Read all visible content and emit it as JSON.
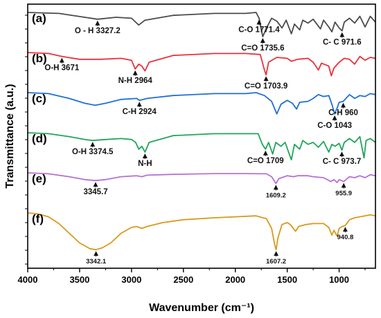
{
  "chart_data": {
    "type": "line",
    "xlabel": "Wavenumber (cm⁻¹)",
    "ylabel": "Transmittance (a.u.)",
    "xlim": [
      4000,
      650
    ],
    "x_reversed": true,
    "xticks": [
      4000,
      3500,
      3000,
      2500,
      2000,
      1500,
      1000
    ],
    "y_ticks_labeled": false,
    "series": [
      {
        "name": "(a)",
        "color": "#4a4a4a",
        "offset": 5,
        "points": [
          [
            4000,
            0
          ],
          [
            3700,
            -0.05
          ],
          [
            3450,
            -0.25
          ],
          [
            3327.2,
            -0.35
          ],
          [
            3150,
            -0.25
          ],
          [
            3000,
            -0.3
          ],
          [
            2960,
            -0.5
          ],
          [
            2930,
            -0.65
          ],
          [
            2870,
            -0.4
          ],
          [
            2600,
            -0.15
          ],
          [
            2200,
            -0.05
          ],
          [
            1900,
            -0.05
          ],
          [
            1800,
            0
          ],
          [
            1771.4,
            -0.3
          ],
          [
            1735.6,
            -1.25
          ],
          [
            1700,
            -0.8
          ],
          [
            1650,
            -0.3
          ],
          [
            1600,
            -0.45
          ],
          [
            1550,
            -0.8
          ],
          [
            1510,
            -0.4
          ],
          [
            1460,
            -1.1
          ],
          [
            1430,
            -0.6
          ],
          [
            1380,
            -0.9
          ],
          [
            1350,
            -0.4
          ],
          [
            1300,
            -0.55
          ],
          [
            1250,
            -0.35
          ],
          [
            1180,
            -0.85
          ],
          [
            1150,
            -0.4
          ],
          [
            1100,
            -0.75
          ],
          [
            1070,
            -1.0
          ],
          [
            1040,
            -0.5
          ],
          [
            1000,
            -0.8
          ],
          [
            971.6,
            -0.95
          ],
          [
            950,
            -0.5
          ],
          [
            900,
            -0.3
          ],
          [
            850,
            -0.55
          ],
          [
            800,
            -0.2
          ],
          [
            750,
            -0.75
          ],
          [
            700,
            -0.2
          ],
          [
            650,
            -0.5
          ]
        ]
      },
      {
        "name": "(b)",
        "color": "#e8313c",
        "offset": 4,
        "points": [
          [
            4000,
            0
          ],
          [
            3800,
            -0.05
          ],
          [
            3671,
            -0.2
          ],
          [
            3500,
            -0.35
          ],
          [
            3300,
            -0.35
          ],
          [
            3100,
            -0.3
          ],
          [
            3000,
            -0.4
          ],
          [
            2964,
            -0.85
          ],
          [
            2930,
            -0.6
          ],
          [
            2900,
            -0.7
          ],
          [
            2870,
            -0.95
          ],
          [
            2830,
            -0.5
          ],
          [
            2600,
            -0.15
          ],
          [
            2200,
            -0.05
          ],
          [
            1900,
            -0.05
          ],
          [
            1760,
            -0.1
          ],
          [
            1720,
            -0.9
          ],
          [
            1703.9,
            -1.15
          ],
          [
            1680,
            -0.5
          ],
          [
            1600,
            -0.25
          ],
          [
            1500,
            -0.3
          ],
          [
            1460,
            -0.45
          ],
          [
            1400,
            -0.35
          ],
          [
            1300,
            -0.3
          ],
          [
            1250,
            -0.5
          ],
          [
            1200,
            -0.9
          ],
          [
            1170,
            -0.55
          ],
          [
            1100,
            -0.7
          ],
          [
            1075,
            -1.2
          ],
          [
            1050,
            -0.8
          ],
          [
            1000,
            -0.5
          ],
          [
            950,
            -0.3
          ],
          [
            900,
            -0.35
          ],
          [
            850,
            -0.6
          ],
          [
            800,
            -0.2
          ],
          [
            750,
            -0.4
          ],
          [
            700,
            -0.25
          ],
          [
            650,
            -0.3
          ]
        ]
      },
      {
        "name": "(c)",
        "color": "#1e6ed8",
        "offset": 3,
        "points": [
          [
            4000,
            0
          ],
          [
            3800,
            -0.05
          ],
          [
            3600,
            -0.3
          ],
          [
            3450,
            -0.55
          ],
          [
            3350,
            -0.65
          ],
          [
            3250,
            -0.55
          ],
          [
            3100,
            -0.35
          ],
          [
            2950,
            -0.3
          ],
          [
            2924,
            -0.4
          ],
          [
            2850,
            -0.3
          ],
          [
            2600,
            -0.15
          ],
          [
            2200,
            -0.05
          ],
          [
            1900,
            -0.05
          ],
          [
            1800,
            0
          ],
          [
            1720,
            -0.15
          ],
          [
            1650,
            -0.45
          ],
          [
            1600,
            -1.1
          ],
          [
            1560,
            -0.6
          ],
          [
            1500,
            -0.4
          ],
          [
            1450,
            -0.55
          ],
          [
            1410,
            -0.85
          ],
          [
            1380,
            -0.5
          ],
          [
            1300,
            -0.45
          ],
          [
            1250,
            -0.3
          ],
          [
            1200,
            -0.1
          ],
          [
            1150,
            -0.2
          ],
          [
            1100,
            -0.15
          ],
          [
            1070,
            -0.6
          ],
          [
            1043,
            -1.1
          ],
          [
            1020,
            -0.8
          ],
          [
            1000,
            -0.5
          ],
          [
            960,
            -0.45
          ],
          [
            900,
            -0.1
          ],
          [
            850,
            -0.3
          ],
          [
            800,
            -0.15
          ],
          [
            750,
            -0.2
          ],
          [
            700,
            -0.05
          ],
          [
            650,
            -0.1
          ]
        ]
      },
      {
        "name": "(d)",
        "color": "#1fa55b",
        "offset": 2,
        "points": [
          [
            4000,
            0
          ],
          [
            3800,
            -0.05
          ],
          [
            3600,
            -0.2
          ],
          [
            3450,
            -0.35
          ],
          [
            3374.5,
            -0.4
          ],
          [
            3250,
            -0.35
          ],
          [
            3100,
            -0.3
          ],
          [
            3000,
            -0.35
          ],
          [
            2960,
            -0.5
          ],
          [
            2930,
            -0.85
          ],
          [
            2900,
            -0.7
          ],
          [
            2870,
            -1.0
          ],
          [
            2830,
            -0.5
          ],
          [
            2600,
            -0.15
          ],
          [
            2200,
            -0.05
          ],
          [
            1900,
            -0.05
          ],
          [
            1780,
            -0.05
          ],
          [
            1740,
            -0.6
          ],
          [
            1709,
            -0.85
          ],
          [
            1680,
            -0.5
          ],
          [
            1640,
            -1.1
          ],
          [
            1610,
            -0.5
          ],
          [
            1560,
            -0.7
          ],
          [
            1520,
            -0.5
          ],
          [
            1460,
            -1.4
          ],
          [
            1430,
            -0.6
          ],
          [
            1380,
            -0.85
          ],
          [
            1350,
            -0.4
          ],
          [
            1300,
            -0.6
          ],
          [
            1250,
            -0.5
          ],
          [
            1200,
            -0.75
          ],
          [
            1150,
            -0.45
          ],
          [
            1100,
            -1.0
          ],
          [
            1070,
            -0.6
          ],
          [
            1040,
            -0.7
          ],
          [
            1000,
            -0.55
          ],
          [
            973.7,
            -0.9
          ],
          [
            950,
            -0.5
          ],
          [
            900,
            -0.3
          ],
          [
            850,
            -0.5
          ],
          [
            800,
            -0.2
          ],
          [
            760,
            -1.3
          ],
          [
            740,
            -0.4
          ],
          [
            700,
            -0.3
          ],
          [
            650,
            -0.5
          ]
        ]
      },
      {
        "name": "(e)",
        "color": "#b56fd6",
        "offset": 1,
        "points": [
          [
            4000,
            0
          ],
          [
            3800,
            -0.05
          ],
          [
            3600,
            -0.2
          ],
          [
            3450,
            -0.35
          ],
          [
            3345.7,
            -0.4
          ],
          [
            3250,
            -0.35
          ],
          [
            3100,
            -0.2
          ],
          [
            2950,
            -0.15
          ],
          [
            2900,
            -0.2
          ],
          [
            2850,
            -0.12
          ],
          [
            2600,
            -0.08
          ],
          [
            2200,
            -0.04
          ],
          [
            1900,
            -0.04
          ],
          [
            1700,
            -0.05
          ],
          [
            1650,
            -0.2
          ],
          [
            1609.2,
            -0.55
          ],
          [
            1580,
            -0.3
          ],
          [
            1500,
            -0.15
          ],
          [
            1440,
            -0.2
          ],
          [
            1400,
            -0.15
          ],
          [
            1300,
            -0.15
          ],
          [
            1250,
            -0.2
          ],
          [
            1150,
            -0.25
          ],
          [
            1080,
            -0.45
          ],
          [
            1050,
            -0.35
          ],
          [
            1020,
            -0.5
          ],
          [
            1000,
            -0.35
          ],
          [
            955.9,
            -0.45
          ],
          [
            900,
            -0.2
          ],
          [
            850,
            -0.25
          ],
          [
            800,
            -0.15
          ],
          [
            750,
            -0.25
          ],
          [
            700,
            -0.1
          ],
          [
            650,
            -0.15
          ]
        ]
      },
      {
        "name": "(f)",
        "color": "#d69a1b",
        "offset": 0,
        "points": [
          [
            4000,
            0
          ],
          [
            3900,
            -0.05
          ],
          [
            3800,
            -0.2
          ],
          [
            3700,
            -0.55
          ],
          [
            3600,
            -1.05
          ],
          [
            3500,
            -1.55
          ],
          [
            3400,
            -1.85
          ],
          [
            3342.1,
            -1.9
          ],
          [
            3280,
            -1.8
          ],
          [
            3200,
            -1.55
          ],
          [
            3100,
            -1.05
          ],
          [
            3000,
            -0.75
          ],
          [
            2950,
            -0.7
          ],
          [
            2900,
            -0.8
          ],
          [
            2850,
            -0.7
          ],
          [
            2700,
            -0.5
          ],
          [
            2500,
            -0.35
          ],
          [
            2200,
            -0.25
          ],
          [
            2000,
            -0.2
          ],
          [
            1800,
            -0.15
          ],
          [
            1700,
            -0.3
          ],
          [
            1650,
            -0.8
          ],
          [
            1620,
            -1.65
          ],
          [
            1607.2,
            -1.9
          ],
          [
            1590,
            -1.3
          ],
          [
            1550,
            -0.6
          ],
          [
            1500,
            -0.5
          ],
          [
            1470,
            -0.6
          ],
          [
            1420,
            -0.95
          ],
          [
            1390,
            -0.7
          ],
          [
            1320,
            -0.6
          ],
          [
            1250,
            -0.55
          ],
          [
            1150,
            -0.55
          ],
          [
            1100,
            -0.75
          ],
          [
            1070,
            -1.15
          ],
          [
            1050,
            -0.9
          ],
          [
            1020,
            -1.2
          ],
          [
            1000,
            -0.8
          ],
          [
            970,
            -0.7
          ],
          [
            940.8,
            -0.65
          ],
          [
            900,
            -0.35
          ],
          [
            850,
            -0.25
          ],
          [
            800,
            -0.2
          ],
          [
            750,
            -0.15
          ],
          [
            700,
            -0.1
          ],
          [
            650,
            -0.15
          ]
        ]
      }
    ],
    "annotations": [
      {
        "series": "(a)",
        "text": "O - H 3327.2",
        "at": 3327.2,
        "size": "normal"
      },
      {
        "series": "(a)",
        "text": "C=O 1735.6",
        "at": 1735.6,
        "size": "normal"
      },
      {
        "series": "(a)",
        "text": "C-O 1771.4",
        "at": 1771.4,
        "size": "normal"
      },
      {
        "series": "(a)",
        "text": "C- C 971.6",
        "at": 971.6,
        "size": "normal"
      },
      {
        "series": "(b)",
        "text": "O-H 3671",
        "at": 3671,
        "size": "normal"
      },
      {
        "series": "(b)",
        "text": "N-H 2964",
        "at": 2964,
        "size": "normal"
      },
      {
        "series": "(b)",
        "text": "C=O 1703.9",
        "at": 1703.9,
        "size": "normal"
      },
      {
        "series": "(c)",
        "text": "C-H 2924",
        "at": 2924,
        "size": "normal"
      },
      {
        "series": "(c)",
        "text": "C-O 1043",
        "at": 1043,
        "size": "normal"
      },
      {
        "series": "(c)",
        "text": "C-H 960",
        "at": 960,
        "size": "normal"
      },
      {
        "series": "(d)",
        "text": "O-H 3374.5",
        "at": 3374.5,
        "size": "normal"
      },
      {
        "series": "(d)",
        "text": "N-H",
        "at": 2870,
        "size": "normal"
      },
      {
        "series": "(d)",
        "text": "C=O 1709",
        "at": 1709,
        "size": "normal"
      },
      {
        "series": "(d)",
        "text": "C- C 973.7",
        "at": 973.7,
        "size": "normal"
      },
      {
        "series": "(e)",
        "text": "3345.7",
        "at": 3345.7,
        "size": "normal"
      },
      {
        "series": "(e)",
        "text": "1609.2",
        "at": 1609.2,
        "size": "small"
      },
      {
        "series": "(e)",
        "text": "955.9",
        "at": 955.9,
        "size": "small"
      },
      {
        "series": "(f)",
        "text": "3342.1",
        "at": 3342.1,
        "size": "small"
      },
      {
        "series": "(f)",
        "text": "1607.2",
        "at": 1607.2,
        "size": "small"
      },
      {
        "series": "(f)",
        "text": "940.8",
        "at": 940.8,
        "size": "small"
      }
    ]
  }
}
